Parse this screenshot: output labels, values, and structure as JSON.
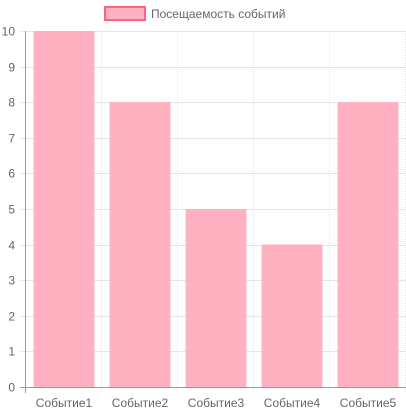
{
  "chart_data": {
    "type": "bar",
    "categories": [
      "Событие1",
      "Событие2",
      "Событие3",
      "Событие4",
      "Событие5"
    ],
    "series": [
      {
        "name": "Посещаемость событий",
        "values": [
          10,
          8,
          5,
          4,
          8
        ]
      }
    ],
    "ylim": [
      0,
      10
    ],
    "yticks": [
      0,
      1,
      2,
      3,
      4,
      5,
      6,
      7,
      8,
      9,
      10
    ],
    "grid": true,
    "legend_position": "top",
    "colors": {
      "bar_fill": "#ffb1c1",
      "bar_border": "#ff6384",
      "grid": "#e6e6e6",
      "axis": "#999999",
      "text": "#666666"
    }
  }
}
